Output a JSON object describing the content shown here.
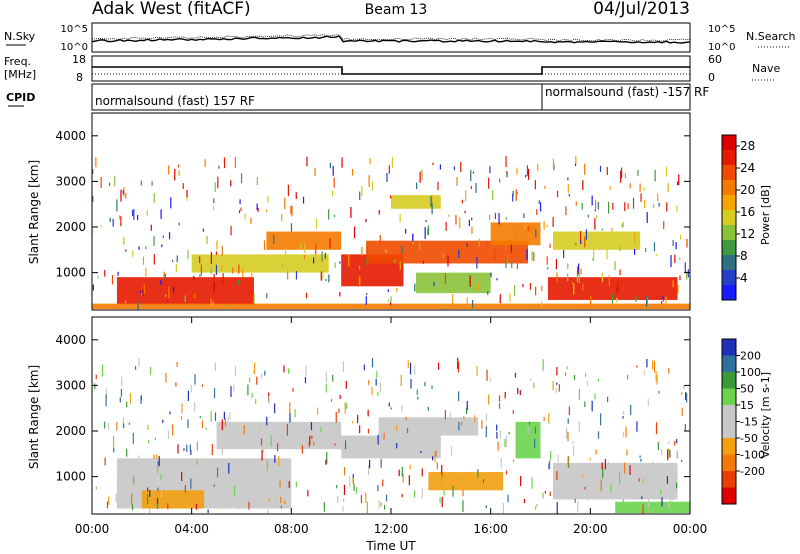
{
  "header": {
    "title_left": "Adak West (fitACF)",
    "title_center": "Beam 13",
    "title_right": "04/Jul/2013"
  },
  "noise_panel": {
    "left_label": "N.Sky",
    "left_ticks": [
      "10^5",
      "10^0"
    ],
    "right_label": "N.Search",
    "right_ticks": [
      "10^5",
      "10^0"
    ]
  },
  "freq_panel": {
    "left_label_line1": "Freq.",
    "left_label_line2": "[MHz]",
    "left_ticks": [
      "18",
      "8"
    ],
    "right_label": "Nave",
    "right_ticks": [
      "60",
      "0"
    ]
  },
  "cpid_panel": {
    "label": "CPID",
    "segments": [
      {
        "start_hour": 0,
        "end_hour": 18,
        "text": "normalsound (fast) 157 RF"
      },
      {
        "start_hour": 18,
        "end_hour": 24,
        "text": "normalsound (fast) -157 RF"
      }
    ]
  },
  "x_axis": {
    "label": "Time UT",
    "ticks": [
      "00:00",
      "04:00",
      "08:00",
      "12:00",
      "16:00",
      "20:00",
      "00:00"
    ]
  },
  "colors": {
    "power_scale": [
      "#1a1aff",
      "#2440c8",
      "#2f6f80",
      "#3f9a40",
      "#8ac23a",
      "#d6cc22",
      "#f5a400",
      "#f57a00",
      "#f04a00",
      "#e61a00",
      "#dd0000"
    ],
    "velocity_scale": [
      "#2030b8",
      "#2f70a0",
      "#3a9a3a",
      "#6cd44c",
      "#c7c7c7",
      "#c7c7c7",
      "#f2a010",
      "#f27a0a",
      "#e93f07",
      "#e00000"
    ]
  },
  "chart_data": [
    {
      "type": "heatmap",
      "title": "Power",
      "xlabel": "Time UT",
      "ylabel": "Slant Range [km]",
      "ylim": [
        180,
        4500
      ],
      "y_ticks": [
        "1000",
        "2000",
        "3000",
        "4000"
      ],
      "colorbar": {
        "label": "Power [dB]",
        "ticks": [
          "4",
          "8",
          "12",
          "16",
          "20",
          "24",
          "28"
        ]
      },
      "regions": [
        {
          "t_start": 1.0,
          "t_end": 6.5,
          "range_min": 300,
          "range_max": 900,
          "value_db": 26
        },
        {
          "t_start": 4.0,
          "t_end": 9.5,
          "range_min": 1000,
          "range_max": 1400,
          "value_db": 14
        },
        {
          "t_start": 7.0,
          "t_end": 10.0,
          "range_min": 1500,
          "range_max": 1900,
          "value_db": 22
        },
        {
          "t_start": 10.0,
          "t_end": 12.5,
          "range_min": 700,
          "range_max": 1400,
          "value_db": 28
        },
        {
          "t_start": 11.0,
          "t_end": 17.5,
          "range_min": 1200,
          "range_max": 1700,
          "value_db": 24
        },
        {
          "t_start": 12.0,
          "t_end": 14.0,
          "range_min": 2400,
          "range_max": 2700,
          "value_db": 16
        },
        {
          "t_start": 13.0,
          "t_end": 16.0,
          "range_min": 550,
          "range_max": 1000,
          "value_db": 12
        },
        {
          "t_start": 16.0,
          "t_end": 18.0,
          "range_min": 1600,
          "range_max": 2100,
          "value_db": 22
        },
        {
          "t_start": 18.3,
          "t_end": 23.5,
          "range_min": 400,
          "range_max": 900,
          "value_db": 26
        },
        {
          "t_start": 18.5,
          "t_end": 22.0,
          "range_min": 1500,
          "range_max": 1900,
          "value_db": 14
        },
        {
          "t_start": 0.0,
          "t_end": 24.0,
          "range_min": 200,
          "range_max": 320,
          "value_db": 20
        }
      ]
    },
    {
      "type": "heatmap",
      "title": "Velocity",
      "xlabel": "Time UT",
      "ylabel": "Slant Range [km]",
      "ylim": [
        180,
        4500
      ],
      "y_ticks": [
        "1000",
        "2000",
        "3000",
        "4000"
      ],
      "colorbar": {
        "label": "Velocity [m s-1]",
        "ticks": [
          "200",
          "100",
          "50",
          "15",
          "-15",
          "-50",
          "-100",
          "-200"
        ]
      },
      "regions": [
        {
          "t_start": 1.0,
          "t_end": 8.0,
          "range_min": 300,
          "range_max": 1400,
          "value_ms": 0
        },
        {
          "t_start": 2.0,
          "t_end": 4.5,
          "range_min": 300,
          "range_max": 700,
          "value_ms": -60
        },
        {
          "t_start": 5.0,
          "t_end": 10.0,
          "range_min": 1600,
          "range_max": 2200,
          "value_ms": 0
        },
        {
          "t_start": 10.0,
          "t_end": 14.0,
          "range_min": 1400,
          "range_max": 1900,
          "value_ms": -40
        },
        {
          "t_start": 11.5,
          "t_end": 15.5,
          "range_min": 1900,
          "range_max": 2300,
          "value_ms": 0
        },
        {
          "t_start": 13.5,
          "t_end": 16.5,
          "range_min": 700,
          "range_max": 1100,
          "value_ms": -60
        },
        {
          "t_start": 17.0,
          "t_end": 18.0,
          "range_min": 1400,
          "range_max": 2200,
          "value_ms": 40
        },
        {
          "t_start": 18.5,
          "t_end": 23.5,
          "range_min": 500,
          "range_max": 1300,
          "value_ms": 0
        },
        {
          "t_start": 21.0,
          "t_end": 24.0,
          "range_min": 200,
          "range_max": 450,
          "value_ms": 30
        }
      ]
    }
  ]
}
